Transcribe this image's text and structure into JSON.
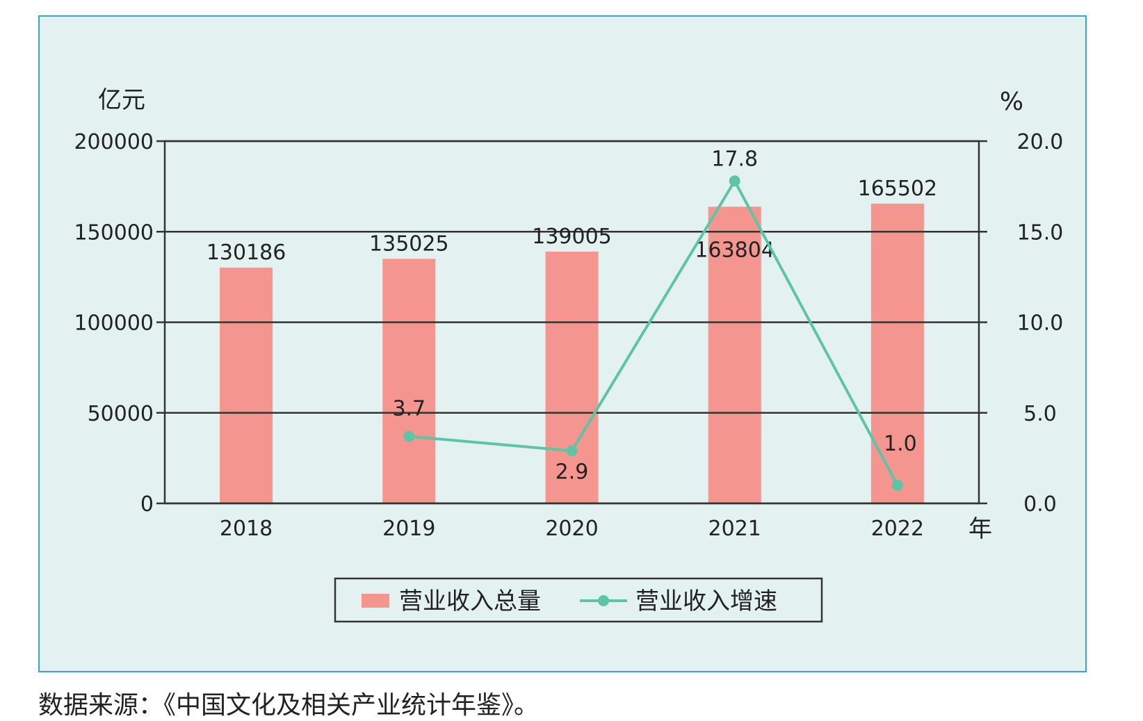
{
  "chart_data": {
    "type": "bar",
    "categories": [
      "2018",
      "2019",
      "2020",
      "2021",
      "2022"
    ],
    "x_unit": "年",
    "y_left_unit": "亿元",
    "y_right_unit": "%",
    "ylim_left": [
      0,
      200000
    ],
    "ylim_right": [
      0.0,
      20.0
    ],
    "y_left_ticks": [
      "0",
      "50000",
      "100000",
      "150000",
      "200000"
    ],
    "y_right_ticks": [
      "0.0",
      "5.0",
      "10.0",
      "15.0",
      "20.0"
    ],
    "grid": true,
    "legend_position": "bottom-center",
    "series": [
      {
        "name": "营业收入总量",
        "type": "bar",
        "axis": "left",
        "color": "#f4958f",
        "values": [
          130186,
          135025,
          139005,
          163804,
          165502
        ],
        "labels": [
          "130186",
          "135025",
          "139005",
          "163804",
          "165502"
        ]
      },
      {
        "name": "营业收入增速",
        "type": "line",
        "axis": "right",
        "color": "#5ec4a6",
        "values": [
          null,
          3.7,
          2.9,
          17.8,
          1.0
        ],
        "labels": [
          "",
          "3.7",
          "2.9",
          "17.8",
          "1.0"
        ]
      }
    ]
  },
  "source_note": "数据来源：《中国文化及相关产业统计年鉴》。"
}
